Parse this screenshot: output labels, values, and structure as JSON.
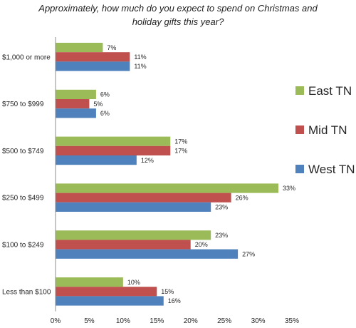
{
  "chart_data": {
    "type": "bar",
    "orientation": "horizontal",
    "title_lines": [
      "Approximately, how much do you expect to spend on Christmas and",
      "holiday gifts this year?"
    ],
    "categories": [
      "$1,000 or more",
      "$750 to $999",
      "$500 to $749",
      "$250 to $499",
      "$100 to $249",
      "Less than $100"
    ],
    "series": [
      {
        "name": "East TN",
        "color": "#9bbb59",
        "values": [
          7,
          6,
          17,
          33,
          23,
          10
        ]
      },
      {
        "name": "Mid TN",
        "color": "#c0504d",
        "values": [
          11,
          5,
          17,
          26,
          20,
          15
        ]
      },
      {
        "name": "West TN",
        "color": "#4f81bd",
        "values": [
          11,
          6,
          12,
          23,
          27,
          16
        ]
      }
    ],
    "xlim": [
      0,
      35
    ],
    "x_ticks": [
      "0%",
      "5%",
      "10%",
      "15%",
      "20%",
      "25%",
      "30%",
      "35%"
    ],
    "value_suffix": "%",
    "xlabel": "",
    "ylabel": "",
    "grid": false,
    "legend_position": "right"
  }
}
